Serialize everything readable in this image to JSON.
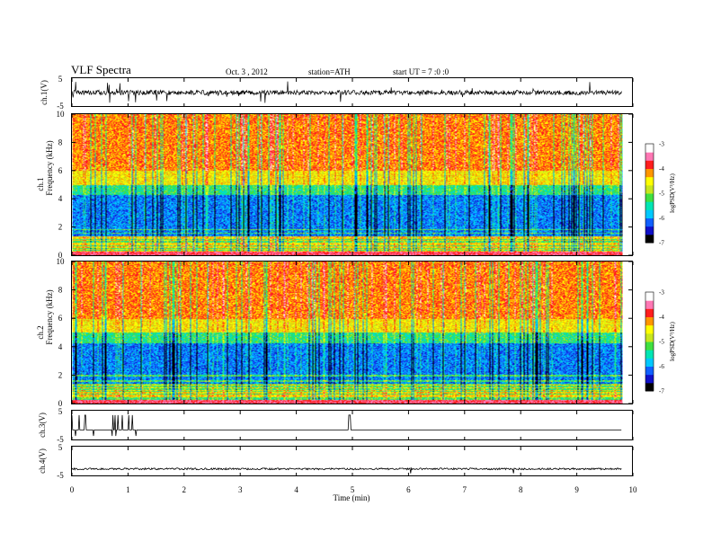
{
  "header": {
    "title": "VLF  Spectra",
    "date": "Oct. 3  , 2012",
    "station": "station=ATH",
    "start": "start  UT  =   7 :0  :0"
  },
  "colors": {
    "waveform": "#000000",
    "colormap": [
      "#000000",
      "#1010c8",
      "#1060ff",
      "#00c8ff",
      "#00e6b4",
      "#40e040",
      "#c8e61e",
      "#ffff00",
      "#ff9600",
      "#ff1e1e",
      "#ff78b4",
      "#ffffff"
    ]
  },
  "chart_data": [
    {
      "type": "line",
      "name": "ch.1 waveform",
      "ylabel": "ch.1(V)",
      "ylim": [
        -5,
        5
      ],
      "yticks": [
        "5",
        "-5"
      ],
      "baseline": 0,
      "amplitude": "noise about 0 V, spikes to about ±4 V"
    },
    {
      "type": "heatmap",
      "name": "ch.1 spectrogram",
      "ylabel": "ch.1\nFrequency  (kHz)",
      "ylim": [
        0,
        10
      ],
      "yticks": [
        "0",
        "2",
        "4",
        "6",
        "8",
        "10"
      ],
      "description": "logPSD high (red) above about 5 kHz, low (blue) between 1.5 and 4.5 kHz, green/cyan mid band, horizontal tonal lines below 2 kHz",
      "colorbar": {
        "label": "logPSD(V²/Hz)",
        "range": [
          -7,
          -3
        ],
        "ticks": [
          "-3",
          "-4",
          "-5",
          "-6",
          "-7"
        ]
      }
    },
    {
      "type": "heatmap",
      "name": "ch.2 spectrogram",
      "ylabel": "ch.2\nFrequency  (kHz)",
      "ylim": [
        0,
        10
      ],
      "yticks": [
        "0",
        "2",
        "4",
        "6",
        "8",
        "10"
      ],
      "colorbar": {
        "label": "logPSD(V²/Hz)",
        "range": [
          -7,
          -3
        ],
        "ticks": [
          "-3",
          "-4",
          "-5",
          "-6",
          "-7"
        ]
      }
    },
    {
      "type": "line",
      "name": "ch.3 waveform",
      "ylabel": "ch.3(V)",
      "ylim": [
        -5,
        5
      ],
      "yticks": [
        "5",
        "-5"
      ],
      "baseline": -1.5,
      "spikes_min": [
        0.05,
        0.1,
        0.4,
        0.5,
        0.55,
        0.85,
        0.95,
        1.05,
        4.95
      ]
    },
    {
      "type": "line",
      "name": "ch.4 waveform",
      "ylabel": "ch.4(V)",
      "ylim": [
        -5,
        5
      ],
      "yticks": [
        "5",
        "-5"
      ],
      "baseline": -2.5
    },
    {
      "type": "axis",
      "xlabel": "Time  (min)",
      "xlim": [
        0,
        10
      ],
      "xticks": [
        "0",
        "1",
        "2",
        "3",
        "4",
        "5",
        "6",
        "7",
        "8",
        "9",
        "10"
      ],
      "data_end_min": 9.8
    }
  ]
}
